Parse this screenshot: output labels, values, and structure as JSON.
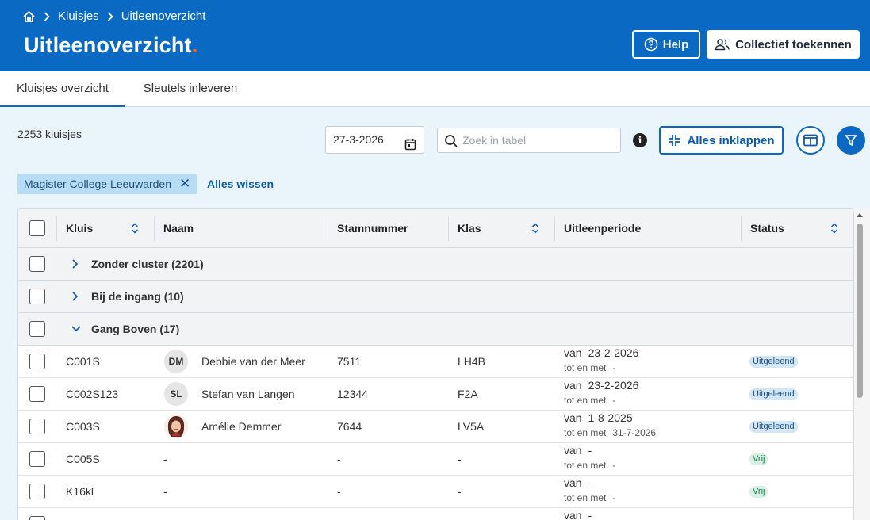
{
  "breadcrumb": {
    "home_icon": "home-icon",
    "items": [
      "Kluisjes",
      "Uitleenoverzicht"
    ]
  },
  "page": {
    "title": "Uitleenoverzicht",
    "title_dot": "."
  },
  "header_buttons": {
    "help": "Help",
    "collective": "Collectief toekennen"
  },
  "tabs": [
    {
      "label": "Kluisjes overzicht",
      "active": true
    },
    {
      "label": "Sleutels inleveren",
      "active": false
    }
  ],
  "toolbar": {
    "count": "2253 kluisjes",
    "date": "27-3-2026",
    "search_placeholder": "Zoek in tabel",
    "collapse_all": "Alles inklappen"
  },
  "filters": {
    "chip": "Magister College Leeuwarden",
    "clear_all": "Alles wissen"
  },
  "table": {
    "columns": [
      "Kluis",
      "Naam",
      "Stamnummer",
      "Klas",
      "Uitleenperiode",
      "Status"
    ],
    "groups": [
      {
        "label": "Zonder cluster (2201)",
        "expanded": false
      },
      {
        "label": "Bij de ingang (10)",
        "expanded": false
      },
      {
        "label": "Gang Boven (17)",
        "expanded": true
      }
    ],
    "period_from_label": "van",
    "period_to_label": "tot en met",
    "rows": [
      {
        "kluis": "C001S",
        "avatar": "DM",
        "naam": "Debbie van der Meer",
        "stamnummer": "7511",
        "klas": "LH4B",
        "van": "23-2-2026",
        "tot": "-",
        "status": "Uitgeleend"
      },
      {
        "kluis": "C002S123",
        "avatar": "SL",
        "naam": "Stefan van Langen",
        "stamnummer": "12344",
        "klas": "F2A",
        "van": "23-2-2026",
        "tot": "-",
        "status": "Uitgeleend"
      },
      {
        "kluis": "C003S",
        "avatar": "",
        "naam": "Amélie Demmer",
        "stamnummer": "7644",
        "klas": "LV5A",
        "van": "1-8-2025",
        "tot": "31-7-2026",
        "status": "Uitgeleend"
      },
      {
        "kluis": "C005S",
        "avatar": "",
        "naam": "-",
        "stamnummer": "-",
        "klas": "-",
        "van": "-",
        "tot": "-",
        "status": "Vrij"
      },
      {
        "kluis": "K16kl",
        "avatar": "",
        "naam": "-",
        "stamnummer": "-",
        "klas": "-",
        "van": "-",
        "tot": "-",
        "status": "Vrij"
      },
      {
        "kluis": "",
        "avatar": "",
        "naam": "",
        "stamnummer": "",
        "klas": "",
        "van": "-",
        "tot": "",
        "status": ""
      }
    ]
  },
  "colors": {
    "primary": "#0a69c2",
    "accent_dot": "#ff6a2a",
    "page_bg": "#eaf4fb"
  }
}
